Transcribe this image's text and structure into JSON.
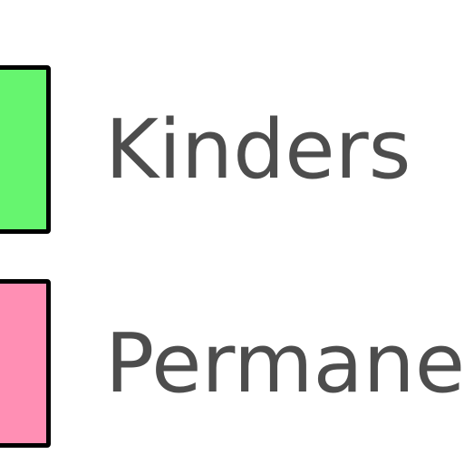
{
  "legend": {
    "items": [
      {
        "label": "Kinders",
        "color": "#66f56f"
      },
      {
        "label": "Permane",
        "color": "#ff8fb4"
      }
    ]
  }
}
